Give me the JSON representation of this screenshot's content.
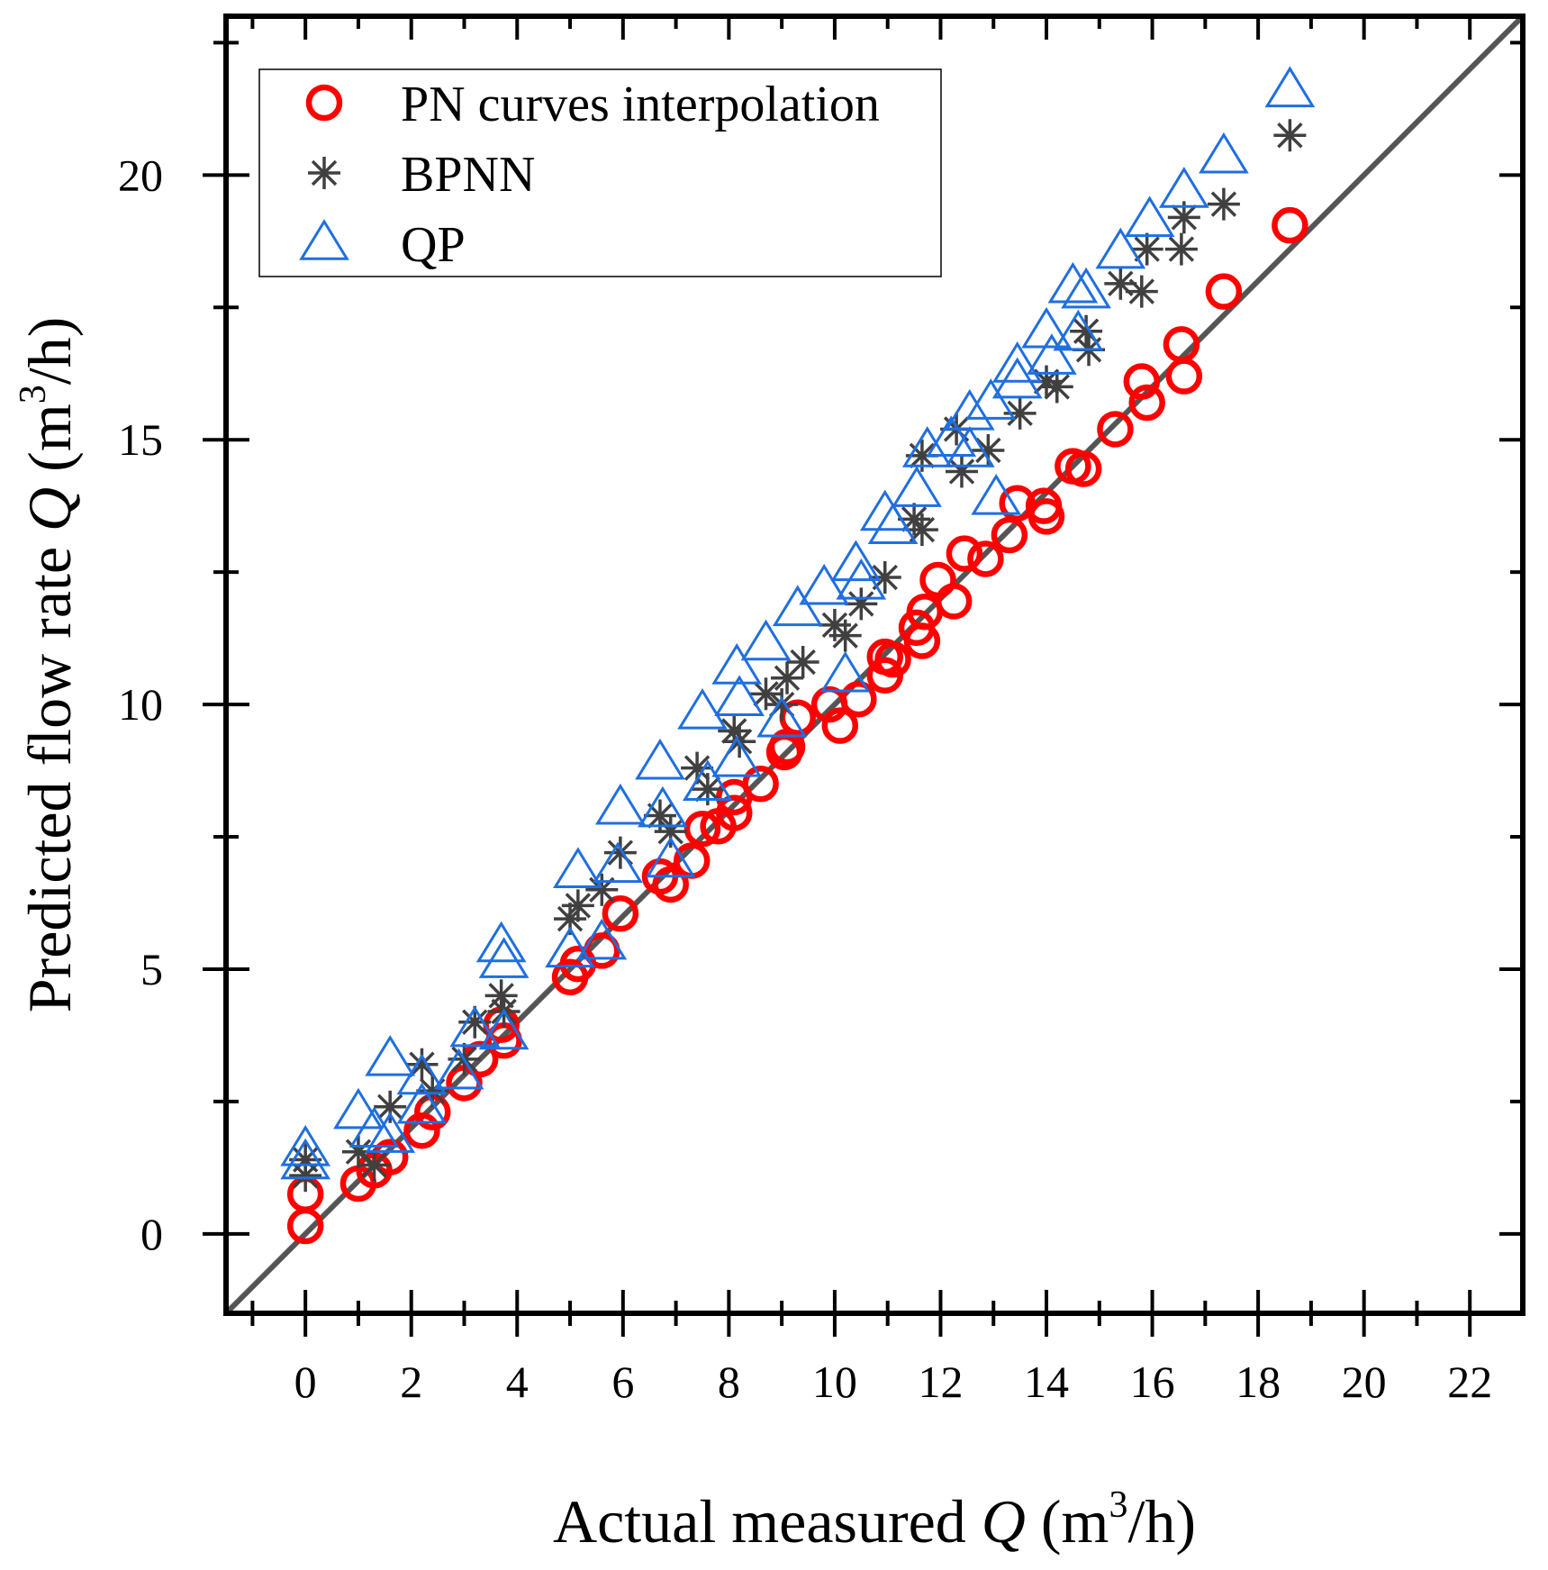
{
  "chart_data": {
    "type": "scatter",
    "xlabel": {
      "prefix": "Actual measured ",
      "var": "Q",
      "unit_open": " (m",
      "sup": "3",
      "unit_close": "/h)"
    },
    "ylabel": {
      "prefix": "Predicted flow rate ",
      "var": "Q",
      "unit_open": " (m",
      "sup": "3",
      "unit_close": "/h)"
    },
    "xlim": [
      -1.5,
      23
    ],
    "ylim": [
      -1.5,
      23
    ],
    "x_ticks": [
      0,
      2,
      4,
      6,
      8,
      10,
      12,
      14,
      16,
      18,
      20,
      22
    ],
    "x_tick_labels": [
      "0",
      "2",
      "4",
      "6",
      "8",
      "10",
      "12",
      "14",
      "16",
      "18",
      "20",
      "22"
    ],
    "y_ticks": [
      0,
      5,
      10,
      15,
      20
    ],
    "y_tick_labels": [
      "0",
      "5",
      "10",
      "15",
      "20"
    ],
    "reference_line": {
      "slope": 1,
      "intercept": 0,
      "color": "#555555"
    },
    "legend_position": "top-left",
    "series": [
      {
        "name": "PN curves interpolation",
        "marker": "circle",
        "color": "#ff0000",
        "points": [
          [
            0,
            0.15
          ],
          [
            0,
            0.75
          ],
          [
            1.0,
            0.95
          ],
          [
            1.3,
            1.2
          ],
          [
            1.6,
            1.45
          ],
          [
            2.2,
            1.95
          ],
          [
            2.4,
            2.3
          ],
          [
            3.0,
            2.85
          ],
          [
            3.3,
            3.3
          ],
          [
            3.75,
            3.65
          ],
          [
            3.7,
            3.95
          ],
          [
            5.0,
            4.85
          ],
          [
            5.15,
            5.1
          ],
          [
            5.6,
            5.35
          ],
          [
            5.95,
            6.05
          ],
          [
            6.7,
            6.75
          ],
          [
            6.9,
            6.6
          ],
          [
            7.3,
            7.05
          ],
          [
            7.5,
            7.65
          ],
          [
            7.8,
            7.7
          ],
          [
            8.1,
            7.95
          ],
          [
            8.1,
            8.25
          ],
          [
            8.6,
            8.5
          ],
          [
            9.05,
            9.1
          ],
          [
            9.1,
            9.2
          ],
          [
            9.3,
            9.75
          ],
          [
            9.9,
            10.0
          ],
          [
            10.1,
            9.6
          ],
          [
            10.45,
            10.1
          ],
          [
            10.95,
            10.55
          ],
          [
            10.95,
            10.9
          ],
          [
            11.1,
            10.85
          ],
          [
            11.55,
            11.45
          ],
          [
            11.65,
            11.2
          ],
          [
            11.7,
            11.75
          ],
          [
            11.95,
            12.35
          ],
          [
            12.25,
            11.95
          ],
          [
            12.45,
            12.85
          ],
          [
            12.85,
            12.75
          ],
          [
            13.3,
            13.2
          ],
          [
            13.45,
            13.8
          ],
          [
            13.95,
            13.75
          ],
          [
            14.0,
            13.55
          ],
          [
            14.5,
            14.5
          ],
          [
            14.7,
            14.45
          ],
          [
            15.3,
            15.2
          ],
          [
            15.8,
            16.1
          ],
          [
            15.9,
            15.7
          ],
          [
            16.55,
            16.8
          ],
          [
            16.6,
            16.2
          ],
          [
            17.35,
            17.8
          ],
          [
            18.6,
            19.05
          ]
        ]
      },
      {
        "name": "BPNN",
        "marker": "asterisk",
        "color": "#404040",
        "points": [
          [
            0,
            1.4
          ],
          [
            0,
            1.1
          ],
          [
            1.0,
            1.55
          ],
          [
            1.3,
            1.3
          ],
          [
            1.6,
            2.4
          ],
          [
            2.2,
            3.2
          ],
          [
            2.4,
            2.7
          ],
          [
            3.0,
            3.3
          ],
          [
            3.2,
            4.0
          ],
          [
            3.7,
            4.5
          ],
          [
            3.75,
            4.2
          ],
          [
            5.0,
            5.95
          ],
          [
            5.15,
            6.2
          ],
          [
            5.6,
            6.5
          ],
          [
            5.95,
            7.2
          ],
          [
            6.7,
            7.9
          ],
          [
            6.9,
            7.6
          ],
          [
            7.4,
            8.8
          ],
          [
            7.6,
            8.4
          ],
          [
            8.1,
            9.5
          ],
          [
            8.2,
            9.3
          ],
          [
            8.7,
            10.2
          ],
          [
            9.0,
            10.0
          ],
          [
            9.1,
            10.5
          ],
          [
            9.4,
            10.8
          ],
          [
            10.0,
            11.5
          ],
          [
            10.2,
            11.3
          ],
          [
            10.5,
            11.9
          ],
          [
            10.95,
            12.4
          ],
          [
            11.5,
            13.5
          ],
          [
            11.65,
            13.3
          ],
          [
            11.65,
            14.7
          ],
          [
            12.3,
            15.2
          ],
          [
            12.4,
            14.4
          ],
          [
            12.9,
            14.8
          ],
          [
            13.5,
            15.5
          ],
          [
            14.0,
            16.1
          ],
          [
            14.2,
            16.0
          ],
          [
            14.75,
            17.05
          ],
          [
            14.8,
            16.7
          ],
          [
            15.4,
            17.95
          ],
          [
            15.8,
            17.8
          ],
          [
            15.9,
            18.6
          ],
          [
            16.55,
            18.6
          ],
          [
            16.6,
            19.2
          ],
          [
            17.35,
            19.45
          ],
          [
            18.6,
            20.75
          ]
        ]
      },
      {
        "name": "QP",
        "marker": "triangle",
        "color": "#1f6fe0",
        "points": [
          [
            0,
            1.6
          ],
          [
            0,
            1.35
          ],
          [
            1.0,
            2.3
          ],
          [
            1.3,
            1.95
          ],
          [
            1.6,
            3.3
          ],
          [
            1.6,
            1.85
          ],
          [
            2.2,
            2.95
          ],
          [
            2.2,
            2.4
          ],
          [
            2.9,
            3.05
          ],
          [
            3.2,
            3.85
          ],
          [
            3.7,
            5.45
          ],
          [
            3.75,
            5.15
          ],
          [
            3.75,
            3.8
          ],
          [
            5.0,
            5.35
          ],
          [
            5.15,
            6.85
          ],
          [
            5.6,
            5.5
          ],
          [
            5.9,
            6.95
          ],
          [
            5.95,
            8.05
          ],
          [
            6.7,
            8.9
          ],
          [
            6.75,
            8.0
          ],
          [
            6.9,
            7.05
          ],
          [
            7.5,
            9.85
          ],
          [
            7.6,
            8.5
          ],
          [
            8.15,
            10.7
          ],
          [
            8.15,
            8.95
          ],
          [
            8.2,
            10.1
          ],
          [
            8.7,
            11.15
          ],
          [
            9.0,
            9.7
          ],
          [
            9.3,
            11.8
          ],
          [
            9.8,
            12.2
          ],
          [
            10.2,
            10.55
          ],
          [
            10.4,
            12.65
          ],
          [
            10.5,
            12.3
          ],
          [
            10.95,
            13.6
          ],
          [
            11.1,
            13.35
          ],
          [
            11.55,
            14.05
          ],
          [
            11.75,
            14.8
          ],
          [
            12.2,
            15.0
          ],
          [
            12.55,
            15.5
          ],
          [
            12.55,
            14.8
          ],
          [
            12.95,
            15.7
          ],
          [
            13.05,
            13.9
          ],
          [
            13.45,
            16.4
          ],
          [
            13.45,
            16.1
          ],
          [
            14.0,
            17.05
          ],
          [
            14.1,
            16.55
          ],
          [
            14.5,
            17.9
          ],
          [
            14.6,
            17.0
          ],
          [
            14.75,
            17.8
          ],
          [
            15.4,
            18.55
          ],
          [
            15.95,
            19.15
          ],
          [
            16.6,
            19.7
          ],
          [
            17.35,
            20.35
          ],
          [
            18.6,
            21.6
          ]
        ]
      }
    ]
  }
}
